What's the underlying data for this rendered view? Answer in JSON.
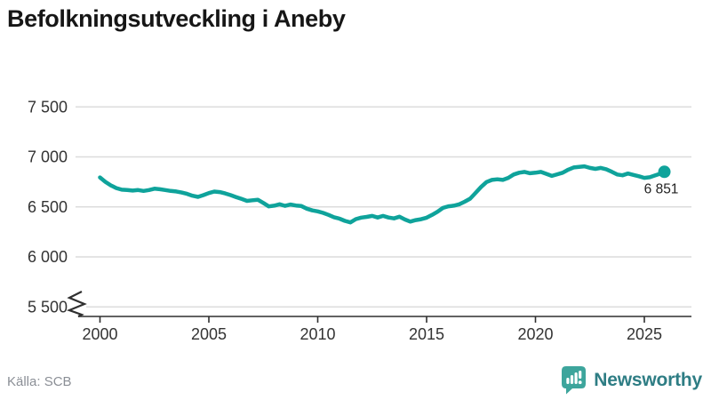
{
  "title": "Befolkningsutveckling i Aneby",
  "source": "Källa: SCB",
  "branding": {
    "logo_text": "Newsworthy",
    "logo_icon": "newsworthy-speech-bubble-bar-chart-icon"
  },
  "colors": {
    "line": "#0fa39b",
    "grid": "#dcdcdc",
    "axis": "#2f2f2f",
    "tick_text": "#333333",
    "title_text": "#161616",
    "annotation_text": "#222222",
    "source_text": "#8b8f96",
    "logo_teal": "#3da59c",
    "logo_text_color": "#2e7d84"
  },
  "chart_data": {
    "type": "line",
    "title": "Befolkningsutveckling i Aneby",
    "source_note": "Källa: SCB",
    "legend": "none",
    "grid": "horizontal",
    "y_axis": {
      "broken_axis": true,
      "range": [
        5500,
        7500
      ],
      "ticks": [
        {
          "value": 7500,
          "label": "7 500"
        },
        {
          "value": 7000,
          "label": "7 000"
        },
        {
          "value": 6500,
          "label": "6 500"
        },
        {
          "value": 6000,
          "label": "6 000"
        },
        {
          "value": 5500,
          "label": "5 500"
        }
      ]
    },
    "x_axis": {
      "range": [
        1999,
        2027
      ],
      "ticks": [
        2000,
        2005,
        2010,
        2015,
        2020,
        2025
      ]
    },
    "end_label": "6 851",
    "latest_value": 6851,
    "series": [
      {
        "name": "Befolkning",
        "points": [
          [
            2000.0,
            6795
          ],
          [
            2000.25,
            6750
          ],
          [
            2000.5,
            6715
          ],
          [
            2000.75,
            6688
          ],
          [
            2001.0,
            6672
          ],
          [
            2001.25,
            6668
          ],
          [
            2001.5,
            6663
          ],
          [
            2001.75,
            6668
          ],
          [
            2002.0,
            6660
          ],
          [
            2002.25,
            6668
          ],
          [
            2002.5,
            6682
          ],
          [
            2002.75,
            6676
          ],
          [
            2003.0,
            6668
          ],
          [
            2003.25,
            6660
          ],
          [
            2003.5,
            6654
          ],
          [
            2003.75,
            6644
          ],
          [
            2004.0,
            6630
          ],
          [
            2004.25,
            6612
          ],
          [
            2004.5,
            6600
          ],
          [
            2004.75,
            6618
          ],
          [
            2005.0,
            6638
          ],
          [
            2005.25,
            6653
          ],
          [
            2005.5,
            6648
          ],
          [
            2005.75,
            6635
          ],
          [
            2006.0,
            6618
          ],
          [
            2006.25,
            6598
          ],
          [
            2006.5,
            6580
          ],
          [
            2006.75,
            6560
          ],
          [
            2007.0,
            6566
          ],
          [
            2007.25,
            6572
          ],
          [
            2007.5,
            6540
          ],
          [
            2007.75,
            6505
          ],
          [
            2008.0,
            6512
          ],
          [
            2008.25,
            6526
          ],
          [
            2008.5,
            6510
          ],
          [
            2008.75,
            6524
          ],
          [
            2009.0,
            6514
          ],
          [
            2009.25,
            6508
          ],
          [
            2009.5,
            6482
          ],
          [
            2009.75,
            6465
          ],
          [
            2010.0,
            6455
          ],
          [
            2010.25,
            6440
          ],
          [
            2010.5,
            6420
          ],
          [
            2010.75,
            6396
          ],
          [
            2011.0,
            6382
          ],
          [
            2011.25,
            6360
          ],
          [
            2011.5,
            6345
          ],
          [
            2011.75,
            6378
          ],
          [
            2012.0,
            6393
          ],
          [
            2012.25,
            6400
          ],
          [
            2012.5,
            6410
          ],
          [
            2012.75,
            6394
          ],
          [
            2013.0,
            6410
          ],
          [
            2013.25,
            6394
          ],
          [
            2013.5,
            6385
          ],
          [
            2013.75,
            6402
          ],
          [
            2014.0,
            6374
          ],
          [
            2014.25,
            6353
          ],
          [
            2014.5,
            6368
          ],
          [
            2014.75,
            6377
          ],
          [
            2015.0,
            6392
          ],
          [
            2015.25,
            6420
          ],
          [
            2015.5,
            6452
          ],
          [
            2015.75,
            6490
          ],
          [
            2016.0,
            6506
          ],
          [
            2016.25,
            6512
          ],
          [
            2016.5,
            6526
          ],
          [
            2016.75,
            6552
          ],
          [
            2017.0,
            6582
          ],
          [
            2017.25,
            6640
          ],
          [
            2017.5,
            6700
          ],
          [
            2017.75,
            6748
          ],
          [
            2018.0,
            6770
          ],
          [
            2018.25,
            6776
          ],
          [
            2018.5,
            6770
          ],
          [
            2018.75,
            6790
          ],
          [
            2019.0,
            6824
          ],
          [
            2019.25,
            6842
          ],
          [
            2019.5,
            6850
          ],
          [
            2019.75,
            6836
          ],
          [
            2020.0,
            6842
          ],
          [
            2020.25,
            6850
          ],
          [
            2020.5,
            6830
          ],
          [
            2020.75,
            6810
          ],
          [
            2021.0,
            6826
          ],
          [
            2021.25,
            6842
          ],
          [
            2021.5,
            6872
          ],
          [
            2021.75,
            6894
          ],
          [
            2022.0,
            6900
          ],
          [
            2022.25,
            6906
          ],
          [
            2022.5,
            6890
          ],
          [
            2022.75,
            6880
          ],
          [
            2023.0,
            6890
          ],
          [
            2023.25,
            6876
          ],
          [
            2023.5,
            6852
          ],
          [
            2023.75,
            6824
          ],
          [
            2024.0,
            6816
          ],
          [
            2024.25,
            6834
          ],
          [
            2024.5,
            6820
          ],
          [
            2024.75,
            6806
          ],
          [
            2025.0,
            6790
          ],
          [
            2025.25,
            6796
          ],
          [
            2025.5,
            6815
          ],
          [
            2025.75,
            6834
          ],
          [
            2025.92,
            6851
          ]
        ]
      }
    ]
  }
}
